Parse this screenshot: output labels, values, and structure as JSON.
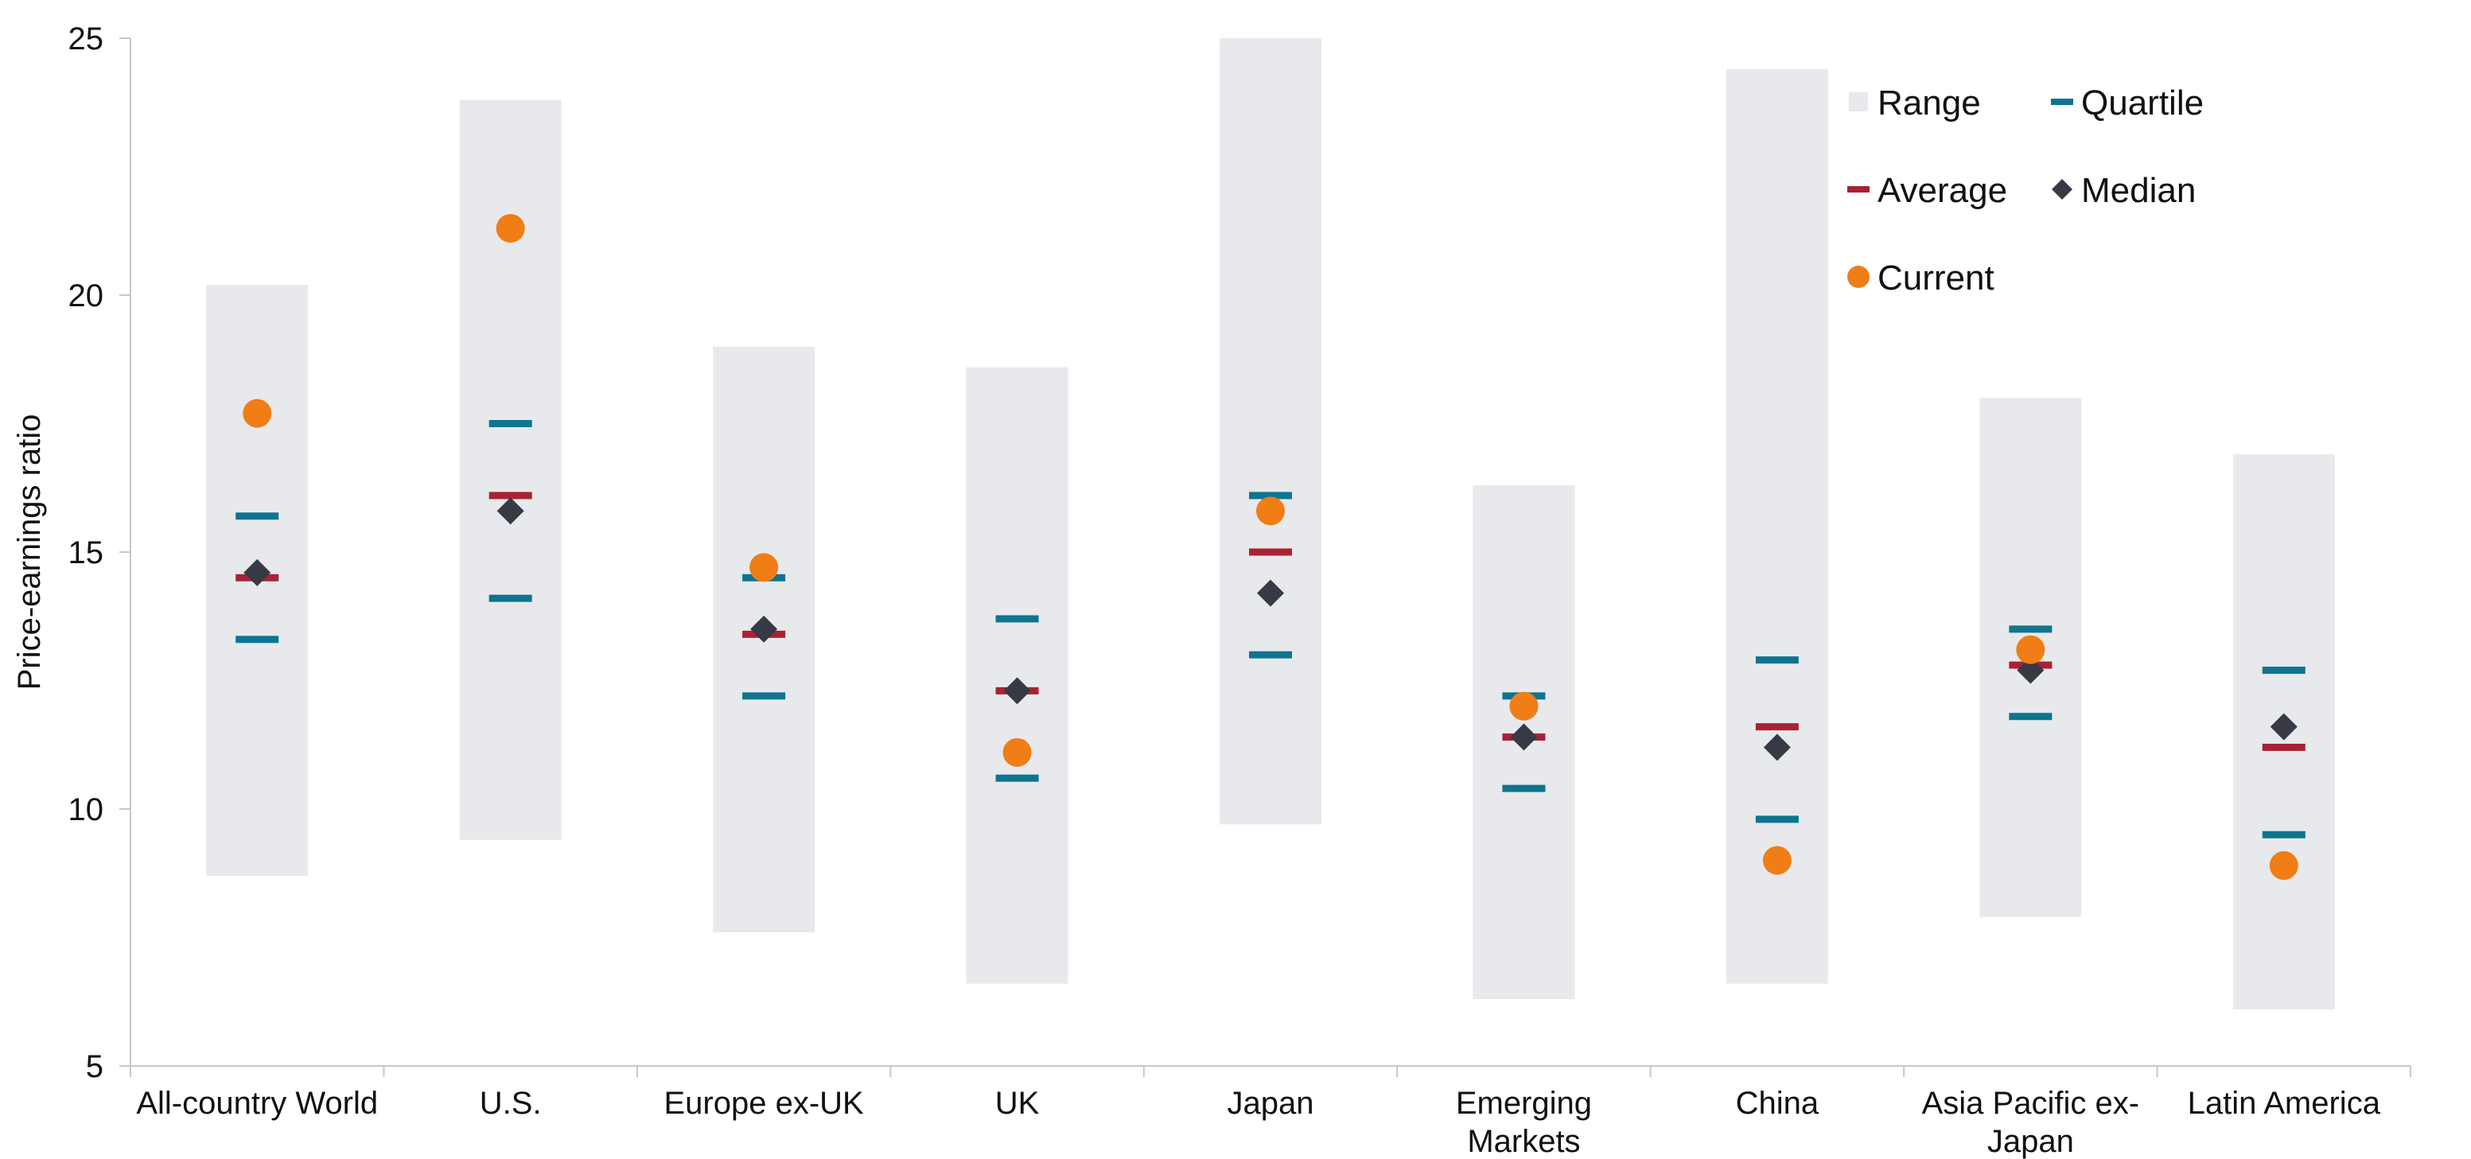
{
  "chart_data": {
    "type": "range-dot",
    "ylabel": "Price-earnings ratio",
    "ylim": [
      5,
      25
    ],
    "yticks": [
      "5",
      "10",
      "15",
      "20",
      "25"
    ],
    "grid": false,
    "legend_placement": "top-right",
    "legend": [
      {
        "key": "range",
        "label": "Range"
      },
      {
        "key": "quartile",
        "label": "Quartile"
      },
      {
        "key": "average",
        "label": "Average"
      },
      {
        "key": "median",
        "label": "Median"
      },
      {
        "key": "current",
        "label": "Current"
      }
    ],
    "colors": {
      "range": "#e8e9ec",
      "quartile": "#0d7590",
      "average": "#a92233",
      "median": "#363a45",
      "current": "#f07d15",
      "axis": "#c8c8c8"
    },
    "categories": [
      {
        "label": [
          "All-country World"
        ],
        "range": [
          8.7,
          20.2
        ],
        "quartile": [
          13.3,
          15.7
        ],
        "average": 14.5,
        "median": 14.6,
        "current": 17.7
      },
      {
        "label": [
          "U.S."
        ],
        "range": [
          9.4,
          23.8
        ],
        "quartile": [
          14.1,
          17.5
        ],
        "average": 16.1,
        "median": 15.8,
        "current": 21.3
      },
      {
        "label": [
          "Europe ex-UK"
        ],
        "range": [
          7.6,
          19.0
        ],
        "quartile": [
          12.2,
          14.5
        ],
        "average": 13.4,
        "median": 13.5,
        "current": 14.7
      },
      {
        "label": [
          "UK"
        ],
        "range": [
          6.6,
          18.6
        ],
        "quartile": [
          10.6,
          13.7
        ],
        "average": 12.3,
        "median": 12.3,
        "current": 11.1
      },
      {
        "label": [
          "Japan"
        ],
        "range": [
          9.7,
          25.0
        ],
        "quartile": [
          13.0,
          16.1
        ],
        "average": 15.0,
        "median": 14.2,
        "current": 15.8
      },
      {
        "label": [
          "Emerging",
          "Markets"
        ],
        "range": [
          6.3,
          16.3
        ],
        "quartile": [
          10.4,
          12.2
        ],
        "average": 11.4,
        "median": 11.4,
        "current": 12.0
      },
      {
        "label": [
          "China"
        ],
        "range": [
          6.6,
          24.4
        ],
        "quartile": [
          9.8,
          12.9
        ],
        "average": 11.6,
        "median": 11.2,
        "current": 9.0
      },
      {
        "label": [
          "Asia Pacific ex-",
          "Japan"
        ],
        "range": [
          7.9,
          18.0
        ],
        "quartile": [
          11.8,
          13.5
        ],
        "average": 12.8,
        "median": 12.7,
        "current": 13.1
      },
      {
        "label": [
          "Latin America"
        ],
        "range": [
          6.1,
          16.9
        ],
        "quartile": [
          9.5,
          12.7
        ],
        "average": 11.2,
        "median": 11.6,
        "current": 8.9
      }
    ]
  }
}
